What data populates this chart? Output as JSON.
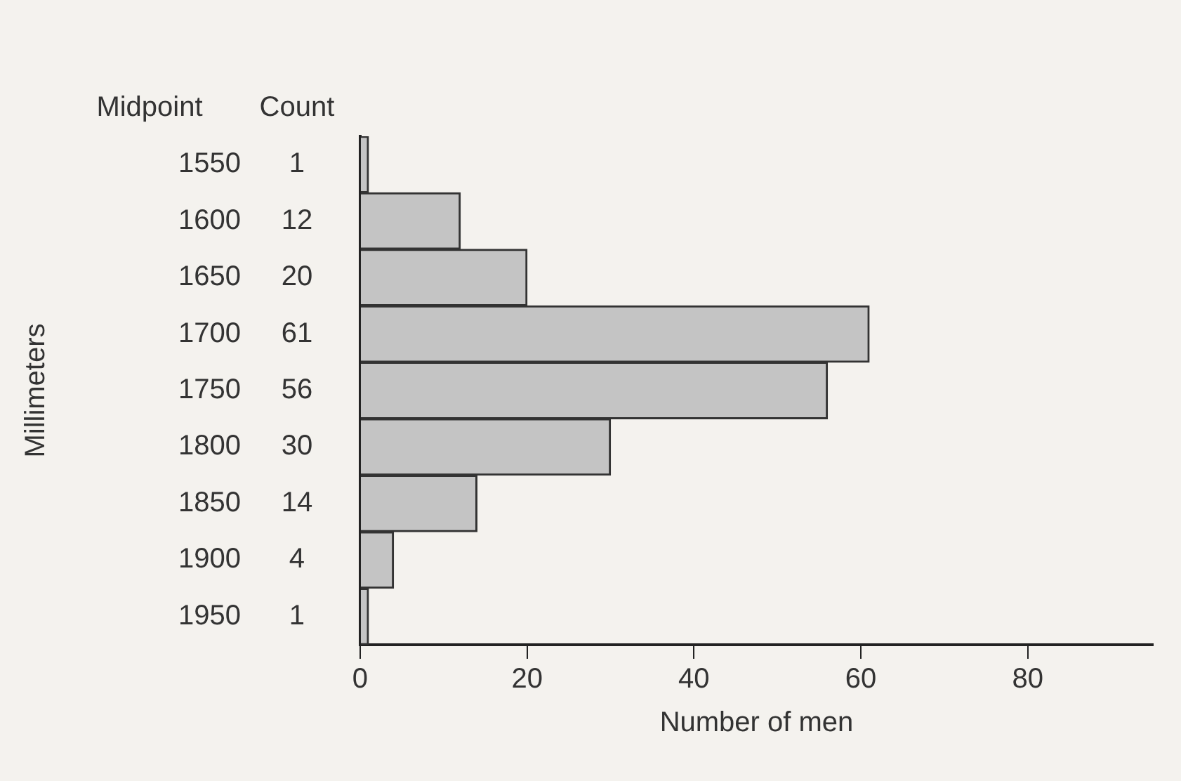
{
  "chart_data": {
    "type": "bar",
    "orientation": "horizontal",
    "categories": [
      "1550",
      "1600",
      "1650",
      "1700",
      "1750",
      "1800",
      "1850",
      "1900",
      "1950"
    ],
    "values": [
      1,
      12,
      20,
      61,
      56,
      30,
      14,
      4,
      1
    ],
    "color": "#c4c4c4",
    "data_labels": true,
    "xlim": [
      0,
      95
    ],
    "xticks": [
      0,
      20,
      40,
      60,
      80
    ],
    "xlabel": "Number of men",
    "ylabel": "Millimeters",
    "annotations": [
      "Midpoint",
      "Count"
    ],
    "grid": false,
    "legend": false
  }
}
